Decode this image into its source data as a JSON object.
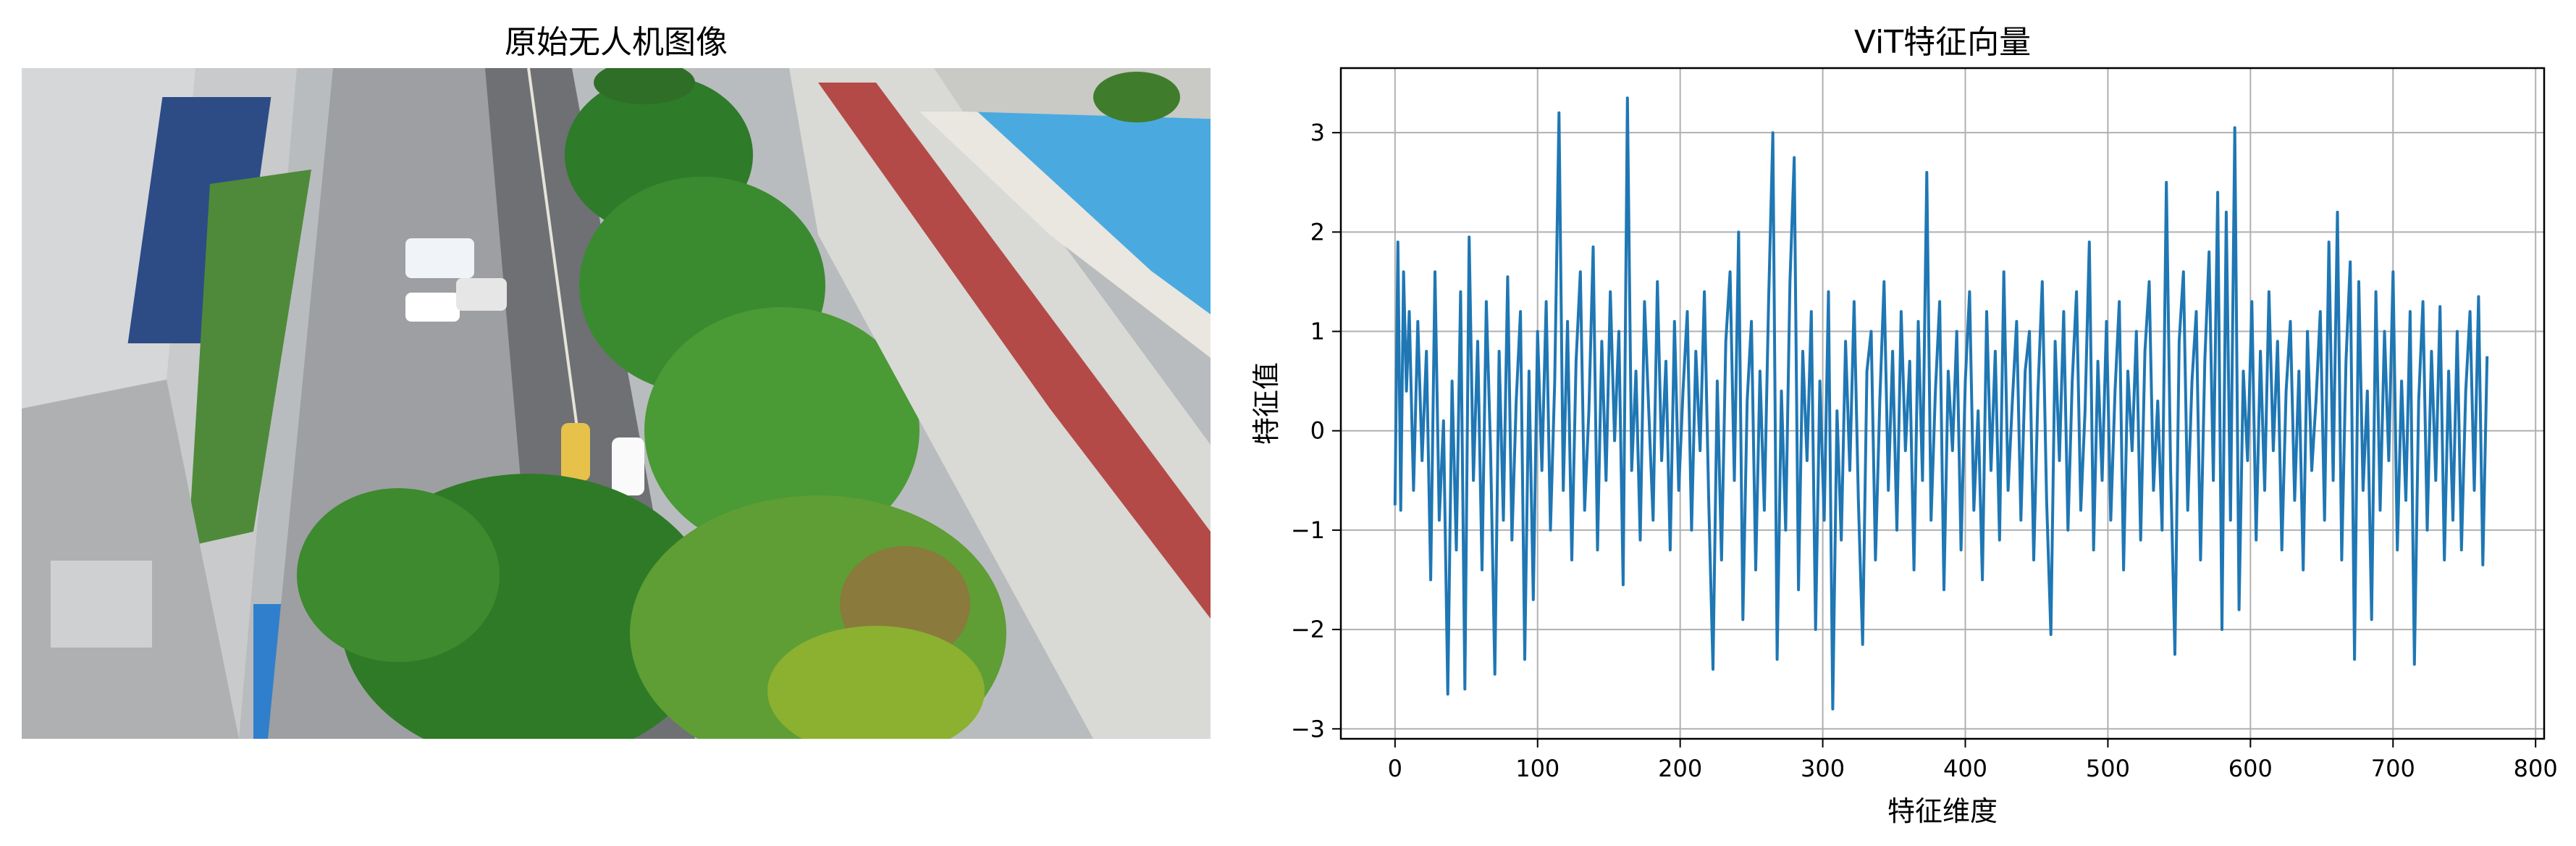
{
  "left_panel": {
    "title": "原始无人机图像",
    "image": {
      "subject": "aerial drone view of a tree-lined city street with buildings, parked cars and shops",
      "colors": {
        "road": "#7b7d80",
        "trees": "#3f8f2e",
        "roof_red": "#b84a4a",
        "roof_blue": "#4aa8de",
        "building": "#d8d8d4"
      }
    }
  },
  "chart_data": {
    "type": "line",
    "title": "ViT特征向量",
    "xlabel": "特征维度",
    "ylabel": "特征值",
    "xlim": [
      -38,
      806
    ],
    "ylim": [
      -3.1,
      3.65
    ],
    "xticks": [
      0,
      100,
      200,
      300,
      400,
      500,
      600,
      700,
      800
    ],
    "yticks": [
      -3,
      -2,
      -1,
      0,
      1,
      2,
      3
    ],
    "grid": true,
    "line_color": "#1f77b4",
    "series": [
      {
        "points": [
          [
            0,
            -0.75
          ],
          [
            2,
            1.9
          ],
          [
            4,
            -0.8
          ],
          [
            6,
            1.6
          ],
          [
            8,
            0.4
          ],
          [
            10,
            1.2
          ],
          [
            13,
            -0.6
          ],
          [
            16,
            1.1
          ],
          [
            19,
            -0.3
          ],
          [
            22,
            0.8
          ],
          [
            25,
            -1.5
          ],
          [
            28,
            1.6
          ],
          [
            31,
            -0.9
          ],
          [
            34,
            0.1
          ],
          [
            37,
            -2.65
          ],
          [
            40,
            0.5
          ],
          [
            43,
            -1.2
          ],
          [
            46,
            1.4
          ],
          [
            49,
            -2.6
          ],
          [
            52,
            1.95
          ],
          [
            55,
            -0.5
          ],
          [
            58,
            0.9
          ],
          [
            61,
            -1.4
          ],
          [
            64,
            1.3
          ],
          [
            67,
            -0.2
          ],
          [
            70,
            -2.45
          ],
          [
            73,
            0.8
          ],
          [
            76,
            -0.9
          ],
          [
            79,
            1.55
          ],
          [
            82,
            -1.1
          ],
          [
            85,
            0.3
          ],
          [
            88,
            1.2
          ],
          [
            91,
            -2.3
          ],
          [
            94,
            0.6
          ],
          [
            97,
            -1.7
          ],
          [
            100,
            1.0
          ],
          [
            103,
            -0.4
          ],
          [
            106,
            1.3
          ],
          [
            109,
            -1.0
          ],
          [
            112,
            0.5
          ],
          [
            115,
            3.2
          ],
          [
            118,
            -0.6
          ],
          [
            121,
            1.1
          ],
          [
            124,
            -1.3
          ],
          [
            127,
            0.7
          ],
          [
            130,
            1.6
          ],
          [
            133,
            -0.8
          ],
          [
            136,
            0.2
          ],
          [
            139,
            1.85
          ],
          [
            142,
            -1.2
          ],
          [
            145,
            0.9
          ],
          [
            148,
            -0.5
          ],
          [
            151,
            1.4
          ],
          [
            154,
            -0.1
          ],
          [
            157,
            1.0
          ],
          [
            160,
            -1.55
          ],
          [
            163,
            3.35
          ],
          [
            166,
            -0.4
          ],
          [
            169,
            0.6
          ],
          [
            172,
            -1.1
          ],
          [
            175,
            1.3
          ],
          [
            178,
            0.2
          ],
          [
            181,
            -0.9
          ],
          [
            184,
            1.5
          ],
          [
            187,
            -0.3
          ],
          [
            190,
            0.7
          ],
          [
            193,
            -1.2
          ],
          [
            196,
            1.1
          ],
          [
            199,
            -0.6
          ],
          [
            202,
            0.4
          ],
          [
            205,
            1.2
          ],
          [
            208,
            -1.0
          ],
          [
            211,
            0.8
          ],
          [
            214,
            -0.2
          ],
          [
            217,
            1.4
          ],
          [
            220,
            -0.7
          ],
          [
            223,
            -2.4
          ],
          [
            226,
            0.5
          ],
          [
            229,
            -1.3
          ],
          [
            232,
            0.9
          ],
          [
            235,
            1.6
          ],
          [
            238,
            -0.5
          ],
          [
            241,
            2.0
          ],
          [
            244,
            -1.9
          ],
          [
            247,
            0.3
          ],
          [
            250,
            1.1
          ],
          [
            253,
            -1.4
          ],
          [
            256,
            0.6
          ],
          [
            259,
            -0.8
          ],
          [
            262,
            1.3
          ],
          [
            265,
            3.0
          ],
          [
            268,
            -2.3
          ],
          [
            271,
            0.4
          ],
          [
            274,
            -1.0
          ],
          [
            277,
            1.5
          ],
          [
            280,
            2.75
          ],
          [
            283,
            -1.6
          ],
          [
            286,
            0.8
          ],
          [
            289,
            -0.3
          ],
          [
            292,
            1.2
          ],
          [
            295,
            -2.0
          ],
          [
            298,
            0.5
          ],
          [
            301,
            -0.9
          ],
          [
            304,
            1.4
          ],
          [
            307,
            -2.8
          ],
          [
            310,
            0.2
          ],
          [
            313,
            -1.1
          ],
          [
            316,
            0.9
          ],
          [
            319,
            -0.4
          ],
          [
            322,
            1.3
          ],
          [
            325,
            -0.7
          ],
          [
            328,
            -2.15
          ],
          [
            331,
            0.6
          ],
          [
            334,
            1.0
          ],
          [
            337,
            -1.3
          ],
          [
            340,
            0.3
          ],
          [
            343,
            1.5
          ],
          [
            346,
            -0.6
          ],
          [
            349,
            0.8
          ],
          [
            352,
            -1.0
          ],
          [
            355,
            1.2
          ],
          [
            358,
            -0.2
          ],
          [
            361,
            0.7
          ],
          [
            364,
            -1.4
          ],
          [
            367,
            1.1
          ],
          [
            370,
            -0.5
          ],
          [
            373,
            2.6
          ],
          [
            376,
            -0.9
          ],
          [
            379,
            0.4
          ],
          [
            382,
            1.3
          ],
          [
            385,
            -1.6
          ],
          [
            388,
            0.6
          ],
          [
            391,
            -0.2
          ],
          [
            394,
            1.0
          ],
          [
            397,
            -1.2
          ],
          [
            400,
            0.5
          ],
          [
            403,
            1.4
          ],
          [
            406,
            -0.8
          ],
          [
            409,
            0.2
          ],
          [
            412,
            -1.5
          ],
          [
            415,
            1.2
          ],
          [
            418,
            -0.4
          ],
          [
            421,
            0.8
          ],
          [
            424,
            -1.1
          ],
          [
            427,
            1.6
          ],
          [
            430,
            -0.6
          ],
          [
            433,
            0.3
          ],
          [
            436,
            1.1
          ],
          [
            439,
            -0.9
          ],
          [
            442,
            0.6
          ],
          [
            445,
            1.0
          ],
          [
            448,
            -1.3
          ],
          [
            451,
            0.4
          ],
          [
            454,
            1.5
          ],
          [
            457,
            -0.7
          ],
          [
            460,
            -2.05
          ],
          [
            463,
            0.9
          ],
          [
            466,
            -0.3
          ],
          [
            469,
            1.2
          ],
          [
            472,
            -1.0
          ],
          [
            475,
            0.5
          ],
          [
            478,
            1.4
          ],
          [
            481,
            -0.8
          ],
          [
            484,
            0.2
          ],
          [
            487,
            1.9
          ],
          [
            490,
            -1.2
          ],
          [
            493,
            0.7
          ],
          [
            496,
            -0.5
          ],
          [
            499,
            1.1
          ],
          [
            502,
            -0.9
          ],
          [
            505,
            0.4
          ],
          [
            508,
            1.3
          ],
          [
            511,
            -1.4
          ],
          [
            514,
            0.6
          ],
          [
            517,
            -0.2
          ],
          [
            520,
            1.0
          ],
          [
            523,
            -1.1
          ],
          [
            526,
            0.8
          ],
          [
            529,
            1.5
          ],
          [
            532,
            -0.6
          ],
          [
            535,
            0.3
          ],
          [
            538,
            -1.0
          ],
          [
            541,
            2.5
          ],
          [
            544,
            -0.4
          ],
          [
            547,
            -2.25
          ],
          [
            550,
            0.9
          ],
          [
            553,
            1.6
          ],
          [
            556,
            -0.8
          ],
          [
            559,
            0.5
          ],
          [
            562,
            1.2
          ],
          [
            565,
            -1.3
          ],
          [
            568,
            0.7
          ],
          [
            571,
            1.8
          ],
          [
            574,
            -0.5
          ],
          [
            577,
            2.4
          ],
          [
            580,
            -2.0
          ],
          [
            583,
            2.2
          ],
          [
            586,
            -0.9
          ],
          [
            589,
            3.05
          ],
          [
            592,
            -1.8
          ],
          [
            595,
            0.6
          ],
          [
            598,
            -0.3
          ],
          [
            601,
            1.3
          ],
          [
            604,
            -1.1
          ],
          [
            607,
            0.8
          ],
          [
            610,
            -0.6
          ],
          [
            613,
            1.4
          ],
          [
            616,
            -0.2
          ],
          [
            619,
            0.9
          ],
          [
            622,
            -1.2
          ],
          [
            625,
            0.4
          ],
          [
            628,
            1.1
          ],
          [
            631,
            -0.7
          ],
          [
            634,
            0.6
          ],
          [
            637,
            -1.4
          ],
          [
            640,
            1.0
          ],
          [
            643,
            -0.4
          ],
          [
            646,
            0.3
          ],
          [
            649,
            1.2
          ],
          [
            652,
            -0.9
          ],
          [
            655,
            1.9
          ],
          [
            658,
            -0.5
          ],
          [
            661,
            2.2
          ],
          [
            664,
            -1.3
          ],
          [
            667,
            0.7
          ],
          [
            670,
            1.7
          ],
          [
            673,
            -2.3
          ],
          [
            676,
            1.5
          ],
          [
            679,
            -0.6
          ],
          [
            682,
            0.4
          ],
          [
            685,
            -1.9
          ],
          [
            688,
            1.4
          ],
          [
            691,
            -0.8
          ],
          [
            694,
            1.0
          ],
          [
            697,
            -0.3
          ],
          [
            700,
            1.6
          ],
          [
            703,
            -1.2
          ],
          [
            706,
            0.5
          ],
          [
            709,
            -0.7
          ],
          [
            712,
            1.2
          ],
          [
            715,
            -2.35
          ],
          [
            718,
            0.3
          ],
          [
            721,
            1.3
          ],
          [
            724,
            -1.0
          ],
          [
            727,
            0.8
          ],
          [
            730,
            -0.5
          ],
          [
            733,
            1.25
          ],
          [
            736,
            -1.3
          ],
          [
            739,
            0.6
          ],
          [
            742,
            -0.9
          ],
          [
            745,
            1.0
          ],
          [
            748,
            -1.2
          ],
          [
            751,
            0.4
          ],
          [
            754,
            1.2
          ],
          [
            757,
            -0.6
          ],
          [
            760,
            1.35
          ],
          [
            763,
            -1.35
          ],
          [
            766,
            0.75
          ]
        ]
      }
    ]
  }
}
